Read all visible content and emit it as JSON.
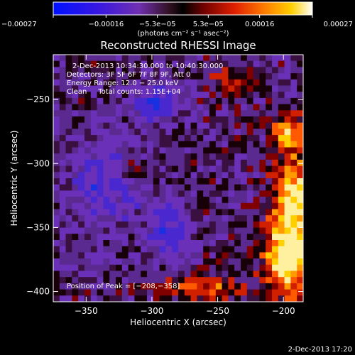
{
  "chart_data": {
    "type": "heatmap",
    "title": "Reconstructed RHESSI Image",
    "xlabel": "Heliocentric X (arcsec)",
    "ylabel": "Heliocentric Y (arcsec)",
    "xlim": [
      -375,
      -185
    ],
    "ylim": [
      -408,
      -215
    ],
    "xticks": [
      -350,
      -300,
      -250,
      -200
    ],
    "yticks": [
      -250,
      -300,
      -350,
      -400
    ],
    "xtick_labels": [
      "−350",
      "−300",
      "−250",
      "−200"
    ],
    "ytick_labels": [
      "−250",
      "−300",
      "−350",
      "−400"
    ],
    "colorbar": {
      "min": -0.00027,
      "max": 0.00027,
      "ticks": [
        -0.00027,
        -0.00016,
        -5.3e-05,
        5.3e-05,
        0.00016,
        0.00027
      ],
      "tick_labels": [
        "−0.00027",
        "−0.00016",
        "−5.3e−05",
        "5.3e−05",
        "0.00016",
        "0.00027"
      ],
      "unit_label": "(photons cm⁻² s⁻¹ asec⁻²)",
      "colors": [
        "#0000ff",
        "#6a28c8",
        "#000000",
        "#ff4000",
        "#ffc800",
        "#ffffff"
      ]
    },
    "annotations": [
      "2-Dec-2013 10:34:30.000 to 10:40:30.000",
      "Detectors: 3F 5F 6F 7F 8F 9F, Att 0",
      "Energy Range: 12.0 − 25.0 keV",
      "Clean     Total counts: 1.15E+04",
      "Position of Peak = [−208,−358]"
    ],
    "peak": {
      "x": -208,
      "y": -358
    },
    "timestamp": "2-Dec-2013 17:20",
    "grid": false,
    "legend": "none"
  }
}
